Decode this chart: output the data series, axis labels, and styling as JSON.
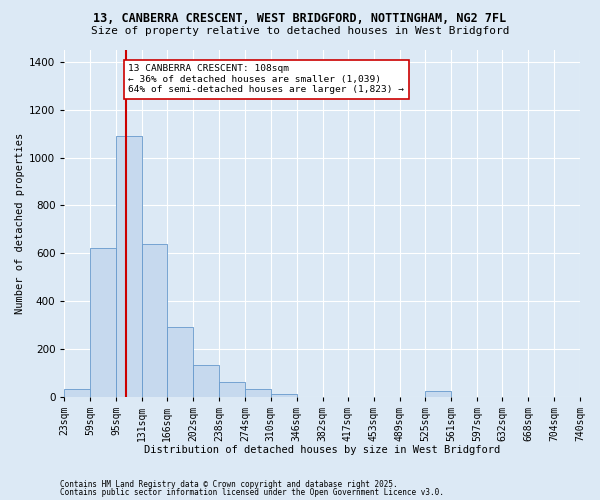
{
  "title_line1": "13, CANBERRA CRESCENT, WEST BRIDGFORD, NOTTINGHAM, NG2 7FL",
  "title_line2": "Size of property relative to detached houses in West Bridgford",
  "xlabel": "Distribution of detached houses by size in West Bridgford",
  "ylabel": "Number of detached properties",
  "footnote1": "Contains HM Land Registry data © Crown copyright and database right 2025.",
  "footnote2": "Contains public sector information licensed under the Open Government Licence v3.0.",
  "bin_edges": [
    23,
    59,
    95,
    131,
    166,
    202,
    238,
    274,
    310,
    346,
    382,
    417,
    453,
    489,
    525,
    561,
    597,
    632,
    668,
    704,
    740
  ],
  "bin_labels": [
    "23sqm",
    "59sqm",
    "95sqm",
    "131sqm",
    "166sqm",
    "202sqm",
    "238sqm",
    "274sqm",
    "310sqm",
    "346sqm",
    "382sqm",
    "417sqm",
    "453sqm",
    "489sqm",
    "525sqm",
    "561sqm",
    "597sqm",
    "632sqm",
    "668sqm",
    "704sqm",
    "740sqm"
  ],
  "counts": [
    30,
    620,
    1090,
    640,
    290,
    130,
    60,
    30,
    10,
    0,
    0,
    0,
    0,
    0,
    25,
    0,
    0,
    0,
    0,
    0
  ],
  "bar_color": "#c6d9ee",
  "bar_edge_color": "#6699cc",
  "property_size": 108,
  "vline_color": "#cc0000",
  "annotation_text": "13 CANBERRA CRESCENT: 108sqm\n← 36% of detached houses are smaller (1,039)\n64% of semi-detached houses are larger (1,823) →",
  "annotation_box_color": "#ffffff",
  "annotation_box_edge": "#cc0000",
  "ylim": [
    0,
    1450
  ],
  "background_color": "#dce9f5",
  "plot_background": "#dce9f5",
  "title_fontsize": 8.5,
  "subtitle_fontsize": 8.0,
  "tick_fontsize": 7.0,
  "ylabel_fontsize": 7.5,
  "xlabel_fontsize": 7.5,
  "annot_fontsize": 6.8,
  "footnote_fontsize": 5.5
}
